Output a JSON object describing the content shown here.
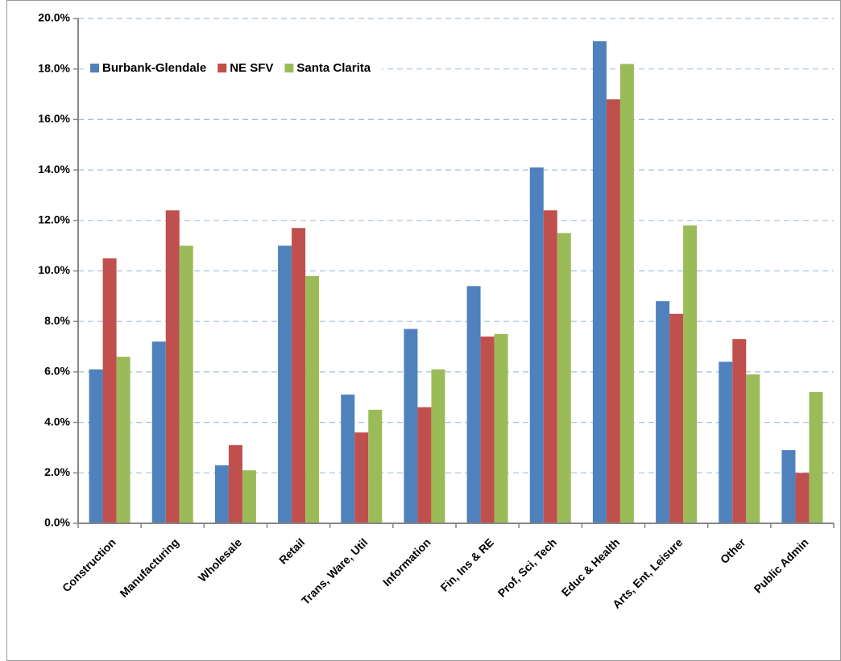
{
  "chart_data": {
    "type": "bar",
    "categories": [
      "Construction",
      "Manufacturing",
      "Wholesale",
      "Retail",
      "Trans, Ware, Util",
      "Information",
      "Fin, Ins & RE",
      "Prof, Sci, Tech",
      "Educ & Health",
      "Arts, Ent, Leisure",
      "Other",
      "Public Admin"
    ],
    "series": [
      {
        "name": "Burbank-Glendale",
        "color": "#4f81bd",
        "values": [
          6.1,
          7.2,
          2.3,
          11.0,
          5.1,
          7.7,
          9.4,
          14.1,
          19.1,
          8.8,
          6.4,
          2.9
        ]
      },
      {
        "name": "NE SFV",
        "color": "#c0504d",
        "values": [
          10.5,
          12.4,
          3.1,
          11.7,
          3.6,
          4.6,
          7.4,
          12.4,
          16.8,
          8.3,
          7.3,
          2.0
        ]
      },
      {
        "name": "Santa Clarita",
        "color": "#9bbb59",
        "values": [
          6.6,
          11.0,
          2.1,
          9.8,
          4.5,
          6.1,
          7.5,
          11.5,
          18.2,
          11.8,
          5.9,
          5.2
        ]
      }
    ],
    "ylim": [
      0,
      20
    ],
    "yticks": [
      {
        "value": 0,
        "label": "0.0%"
      },
      {
        "value": 2,
        "label": "2.0%"
      },
      {
        "value": 4,
        "label": "4.0%"
      },
      {
        "value": 6,
        "label": "6.0%"
      },
      {
        "value": 8,
        "label": "8.0%"
      },
      {
        "value": 10,
        "label": "10.0%"
      },
      {
        "value": 12,
        "label": "12.0%"
      },
      {
        "value": 14,
        "label": "14.0%"
      },
      {
        "value": 16,
        "label": "16.0%"
      },
      {
        "value": 18,
        "label": "18.0%"
      },
      {
        "value": 20,
        "label": "20.0%"
      }
    ],
    "grid": true,
    "legend": "top-left"
  }
}
